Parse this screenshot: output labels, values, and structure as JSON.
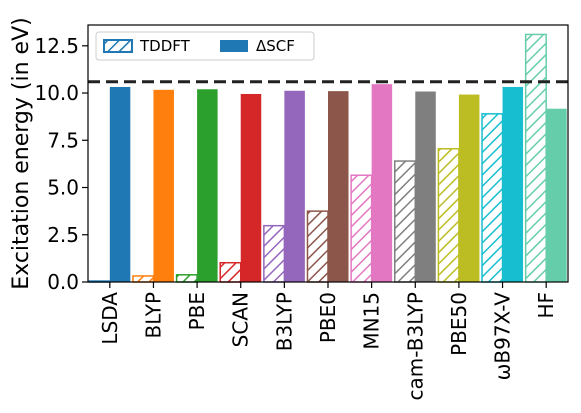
{
  "chart_data": {
    "type": "bar",
    "ylabel": "Excitation energy (in eV)",
    "xlabel": "",
    "ylim": [
      0,
      13.6
    ],
    "yticks": [
      0.0,
      2.5,
      5.0,
      7.5,
      10.0,
      12.5
    ],
    "ytick_labels": [
      "0.0",
      "2.5",
      "5.0",
      "7.5",
      "10.0",
      "12.5"
    ],
    "reference_line": 10.6,
    "legend": {
      "position": "top-left",
      "entries": [
        "TDDFT",
        "ΔSCF"
      ]
    },
    "categories": [
      "LSDA",
      "BLYP",
      "PBE",
      "SCAN",
      "B3LYP",
      "PBE0",
      "MN15",
      "cam-B3LYP",
      "PBE50",
      "ωB97X-V",
      "HF"
    ],
    "colors": [
      "#1f77b4",
      "#ff7f0e",
      "#2ca02c",
      "#d62728",
      "#9467bd",
      "#8c564b",
      "#e377c2",
      "#7f7f7f",
      "#bcbd22",
      "#17becf",
      "#66cdaa"
    ],
    "series": [
      {
        "name": "TDDFT",
        "style": "hatched",
        "values": [
          0.05,
          0.32,
          0.38,
          1.02,
          2.98,
          3.75,
          5.65,
          6.4,
          7.05,
          8.9,
          13.1
        ]
      },
      {
        "name": "ΔSCF",
        "style": "solid",
        "values": [
          10.32,
          10.17,
          10.2,
          9.95,
          10.12,
          10.1,
          10.47,
          10.08,
          9.92,
          10.32,
          9.17
        ]
      }
    ]
  }
}
